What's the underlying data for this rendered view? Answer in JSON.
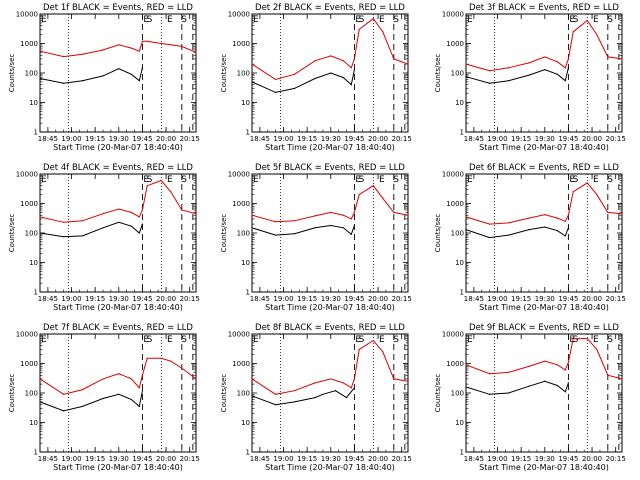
{
  "chart_data": [
    {
      "type": "line",
      "title": "Det 1f BLACK = Events, RED = LLD",
      "ylabel": "Counts/sec",
      "xlabel": "Start Time (20-Mar-07 18:40:40)",
      "x_ticks": [
        "18:45",
        "19:00",
        "19:15",
        "19:30",
        "19:45",
        "20:00",
        "20:15"
      ],
      "y_ticks": [
        "1",
        "10",
        "100",
        "1000",
        "10000"
      ],
      "y_scale": "log",
      "ylim": [
        1,
        10000
      ],
      "xlim": [
        "18:40",
        "20:19"
      ],
      "markers": [
        "E",
        "S",
        "E",
        "S"
      ],
      "series": [
        {
          "color": "#000000",
          "x": [
            "18:40",
            "18:55",
            "19:07",
            "19:20",
            "19:30",
            "19:38",
            "19:43",
            "19:45"
          ],
          "y": [
            65,
            45,
            55,
            80,
            140,
            90,
            55,
            150
          ]
        },
        {
          "color": "#dd0000",
          "x": [
            "18:40",
            "18:55",
            "19:07",
            "19:20",
            "19:30",
            "19:38",
            "19:43",
            "19:45",
            "19:48",
            "19:57",
            "20:03",
            "20:10",
            "20:19"
          ],
          "y": [
            550,
            360,
            430,
            600,
            900,
            700,
            550,
            1200,
            1200,
            1000,
            900,
            800,
            500
          ]
        }
      ]
    },
    {
      "type": "line",
      "title": "Det 2f BLACK = Events, RED = LLD",
      "ylabel": "Counts/sec",
      "xlabel": "Start Time (20-Mar-07 18:40:40)",
      "x_ticks": [
        "18:45",
        "19:00",
        "19:15",
        "19:30",
        "19:45",
        "20:00",
        "20:15"
      ],
      "y_ticks": [
        "1",
        "10",
        "100",
        "1000",
        "10000"
      ],
      "y_scale": "log",
      "ylim": [
        1,
        10000
      ],
      "xlim": [
        "18:40",
        "20:19"
      ],
      "markers": [
        "E",
        "S",
        "E",
        "S"
      ],
      "series": [
        {
          "color": "#000000",
          "x": [
            "18:40",
            "18:55",
            "19:07",
            "19:20",
            "19:30",
            "19:38",
            "19:43",
            "19:45"
          ],
          "y": [
            50,
            22,
            30,
            65,
            100,
            70,
            40,
            130
          ]
        },
        {
          "color": "#dd0000",
          "x": [
            "18:40",
            "18:55",
            "19:07",
            "19:20",
            "19:30",
            "19:38",
            "19:43",
            "19:45",
            "19:48",
            "19:57",
            "20:03",
            "20:10",
            "20:19"
          ],
          "y": [
            200,
            60,
            90,
            260,
            380,
            260,
            150,
            300,
            3000,
            7000,
            2500,
            300,
            200
          ]
        }
      ]
    },
    {
      "type": "line",
      "title": "Det 3f BLACK = Events, RED = LLD",
      "ylabel": "Counts/sec",
      "xlabel": "Start Time (20-Mar-07 18:40:40)",
      "x_ticks": [
        "18:45",
        "19:00",
        "19:15",
        "19:30",
        "19:45",
        "20:00",
        "20:15"
      ],
      "y_ticks": [
        "1",
        "10",
        "100",
        "1000",
        "10000"
      ],
      "y_scale": "log",
      "ylim": [
        1,
        10000
      ],
      "xlim": [
        "18:40",
        "20:19"
      ],
      "markers": [
        "E",
        "S",
        "E",
        "S"
      ],
      "series": [
        {
          "color": "#000000",
          "x": [
            "18:40",
            "18:55",
            "19:07",
            "19:20",
            "19:30",
            "19:38",
            "19:43",
            "19:45"
          ],
          "y": [
            75,
            45,
            55,
            85,
            130,
            90,
            55,
            150
          ]
        },
        {
          "color": "#dd0000",
          "x": [
            "18:40",
            "18:55",
            "19:07",
            "19:20",
            "19:30",
            "19:38",
            "19:43",
            "19:45",
            "19:48",
            "19:57",
            "20:03",
            "20:10",
            "20:19"
          ],
          "y": [
            200,
            120,
            150,
            220,
            350,
            240,
            150,
            300,
            2500,
            6000,
            2000,
            350,
            300
          ]
        }
      ]
    },
    {
      "type": "line",
      "title": "Det 4f BLACK = Events, RED = LLD",
      "ylabel": "Counts/sec",
      "xlabel": "Start Time (20-Mar-07 18:40:40)",
      "x_ticks": [
        "18:45",
        "19:00",
        "19:15",
        "19:30",
        "19:45",
        "20:00",
        "20:15"
      ],
      "y_ticks": [
        "1",
        "10",
        "100",
        "1000",
        "10000"
      ],
      "y_scale": "log",
      "ylim": [
        1,
        10000
      ],
      "xlim": [
        "18:40",
        "20:19"
      ],
      "markers": [
        "E",
        "S",
        "E",
        "S"
      ],
      "series": [
        {
          "color": "#000000",
          "x": [
            "18:40",
            "18:55",
            "19:07",
            "19:20",
            "19:30",
            "19:38",
            "19:43",
            "19:45"
          ],
          "y": [
            100,
            75,
            80,
            150,
            230,
            170,
            100,
            200
          ]
        },
        {
          "color": "#dd0000",
          "x": [
            "18:40",
            "18:55",
            "19:07",
            "19:20",
            "19:30",
            "19:38",
            "19:43",
            "19:45",
            "19:48",
            "19:57",
            "20:03",
            "20:10",
            "20:19"
          ],
          "y": [
            350,
            230,
            260,
            450,
            650,
            500,
            350,
            600,
            4000,
            6000,
            2500,
            600,
            450
          ]
        }
      ]
    },
    {
      "type": "line",
      "title": "Det 5f BLACK = Events, RED = LLD",
      "ylabel": "Counts/sec",
      "xlabel": "Start Time (20-Mar-07 18:40:40)",
      "x_ticks": [
        "18:45",
        "19:00",
        "19:15",
        "19:30",
        "19:45",
        "20:00",
        "20:15"
      ],
      "y_ticks": [
        "1",
        "10",
        "100",
        "1000",
        "10000"
      ],
      "y_scale": "log",
      "ylim": [
        1,
        10000
      ],
      "xlim": [
        "18:40",
        "20:19"
      ],
      "markers": [
        "E",
        "S",
        "E",
        "S"
      ],
      "series": [
        {
          "color": "#000000",
          "x": [
            "18:40",
            "18:55",
            "19:07",
            "19:20",
            "19:30",
            "19:38",
            "19:43",
            "19:45"
          ],
          "y": [
            150,
            85,
            95,
            150,
            180,
            150,
            90,
            180
          ]
        },
        {
          "color": "#dd0000",
          "x": [
            "18:40",
            "18:55",
            "19:07",
            "19:20",
            "19:30",
            "19:38",
            "19:43",
            "19:45",
            "19:48",
            "19:57",
            "20:03",
            "20:10",
            "20:19"
          ],
          "y": [
            400,
            240,
            260,
            380,
            500,
            400,
            300,
            500,
            2000,
            4000,
            1500,
            500,
            400
          ]
        }
      ]
    },
    {
      "type": "line",
      "title": "Det 6f BLACK = Events, RED = LLD",
      "ylabel": "Counts/sec",
      "xlabel": "Start Time (20-Mar-07 18:40:40)",
      "x_ticks": [
        "18:45",
        "19:00",
        "19:15",
        "19:30",
        "19:45",
        "20:00",
        "20:15"
      ],
      "y_ticks": [
        "1",
        "10",
        "100",
        "1000",
        "10000"
      ],
      "y_scale": "log",
      "ylim": [
        1,
        10000
      ],
      "xlim": [
        "18:40",
        "20:19"
      ],
      "markers": [
        "E",
        "S",
        "E",
        "S"
      ],
      "series": [
        {
          "color": "#000000",
          "x": [
            "18:40",
            "18:55",
            "19:07",
            "19:20",
            "19:30",
            "19:38",
            "19:43",
            "19:45"
          ],
          "y": [
            130,
            70,
            85,
            130,
            160,
            120,
            80,
            150
          ]
        },
        {
          "color": "#dd0000",
          "x": [
            "18:40",
            "18:55",
            "19:07",
            "19:20",
            "19:30",
            "19:38",
            "19:43",
            "19:45",
            "19:48",
            "19:57",
            "20:03",
            "20:10",
            "20:19"
          ],
          "y": [
            350,
            200,
            220,
            320,
            420,
            320,
            250,
            400,
            2500,
            5000,
            2000,
            500,
            450
          ]
        }
      ]
    },
    {
      "type": "line",
      "title": "Det 7f BLACK = Events, RED = LLD",
      "ylabel": "Counts/sec",
      "xlabel": "Start Time (20-Mar-07 18:40:40)",
      "x_ticks": [
        "18:45",
        "19:00",
        "19:15",
        "19:30",
        "19:45",
        "20:00",
        "20:15"
      ],
      "y_ticks": [
        "1",
        "10",
        "100",
        "1000",
        "10000"
      ],
      "y_scale": "log",
      "ylim": [
        1,
        10000
      ],
      "xlim": [
        "18:40",
        "20:19"
      ],
      "markers": [
        "E",
        "S",
        "E",
        "S"
      ],
      "series": [
        {
          "color": "#000000",
          "x": [
            "18:40",
            "18:55",
            "19:07",
            "19:20",
            "19:30",
            "19:38",
            "19:43",
            "19:45"
          ],
          "y": [
            50,
            25,
            35,
            65,
            90,
            60,
            35,
            120
          ]
        },
        {
          "color": "#dd0000",
          "x": [
            "18:40",
            "18:55",
            "19:07",
            "19:20",
            "19:30",
            "19:38",
            "19:43",
            "19:45",
            "19:48",
            "19:57",
            "20:03",
            "20:10",
            "20:19"
          ],
          "y": [
            300,
            90,
            130,
            300,
            450,
            300,
            150,
            400,
            1500,
            1500,
            1200,
            700,
            300
          ]
        }
      ]
    },
    {
      "type": "line",
      "title": "Det 8f BLACK = Events, RED = LLD",
      "ylabel": "Counts/sec",
      "xlabel": "Start Time (20-Mar-07 18:40:40)",
      "x_ticks": [
        "18:45",
        "19:00",
        "19:15",
        "19:30",
        "19:45",
        "20:00",
        "20:15"
      ],
      "y_ticks": [
        "1",
        "10",
        "100",
        "1000",
        "10000"
      ],
      "y_scale": "log",
      "ylim": [
        1,
        10000
      ],
      "xlim": [
        "18:40",
        "20:19"
      ],
      "markers": [
        "E",
        "S",
        "E",
        "S"
      ],
      "series": [
        {
          "color": "#000000",
          "x": [
            "18:40",
            "18:55",
            "19:07",
            "19:20",
            "19:25",
            "19:33",
            "19:40",
            "19:45"
          ],
          "y": [
            80,
            40,
            50,
            70,
            90,
            120,
            70,
            150
          ]
        },
        {
          "color": "#dd0000",
          "x": [
            "18:40",
            "18:55",
            "19:07",
            "19:20",
            "19:30",
            "19:38",
            "19:43",
            "19:45",
            "19:48",
            "19:57",
            "20:03",
            "20:10",
            "20:19"
          ],
          "y": [
            300,
            90,
            120,
            220,
            300,
            220,
            150,
            300,
            3000,
            6000,
            2500,
            300,
            250
          ]
        }
      ]
    },
    {
      "type": "line",
      "title": "Det 9f BLACK = Events, RED = LLD",
      "ylabel": "Counts/sec",
      "xlabel": "Start Time (20-Mar-07 18:40:40)",
      "x_ticks": [
        "18:45",
        "19:00",
        "19:15",
        "19:30",
        "19:45",
        "20:00",
        "20:15"
      ],
      "y_ticks": [
        "1",
        "10",
        "100",
        "1000",
        "10000"
      ],
      "y_scale": "log",
      "ylim": [
        1,
        10000
      ],
      "xlim": [
        "18:40",
        "20:19"
      ],
      "markers": [
        "E",
        "S",
        "E",
        "S"
      ],
      "series": [
        {
          "color": "#000000",
          "x": [
            "18:40",
            "18:55",
            "19:07",
            "19:20",
            "19:30",
            "19:38",
            "19:43",
            "19:45"
          ],
          "y": [
            160,
            90,
            100,
            170,
            250,
            180,
            110,
            220
          ]
        },
        {
          "color": "#dd0000",
          "x": [
            "18:40",
            "18:55",
            "19:07",
            "19:20",
            "19:30",
            "19:38",
            "19:43",
            "19:45",
            "19:48",
            "19:57",
            "20:03",
            "20:10",
            "20:19"
          ],
          "y": [
            900,
            450,
            500,
            800,
            1200,
            900,
            600,
            1100,
            7000,
            7000,
            3000,
            400,
            300
          ]
        }
      ]
    }
  ]
}
